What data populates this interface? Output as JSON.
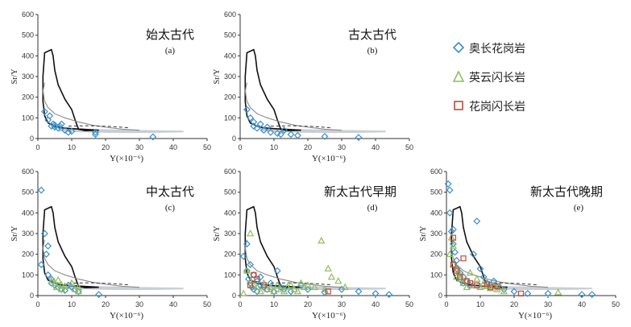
{
  "colors": {
    "tonalite": "#3d8ec9",
    "trondhjemite": "#8fbe5a",
    "granodiorite": "#c24a3a",
    "adakite_field": "#111111",
    "arc_field": "#8a8a8a",
    "normal_arc_band": "#c9ced6",
    "axis": "#333333"
  },
  "legend": {
    "items": [
      {
        "label": "奥长花岗岩",
        "marker": "diamond",
        "color_key": "tonalite"
      },
      {
        "label": "英云闪长岩",
        "marker": "triangle",
        "color_key": "trondhjemite"
      },
      {
        "label": "花岗闪长岩",
        "marker": "square",
        "color_key": "granodiorite"
      }
    ]
  },
  "chart_data": [
    {
      "type": "scatter",
      "title": "始太古代",
      "panel_label": "(a)",
      "xlabel": "Y(×10⁻⁶)",
      "ylabel": "Sr/Y",
      "xlim": [
        0,
        50
      ],
      "ylim": [
        0,
        600
      ],
      "xticks": [
        0,
        10,
        20,
        30,
        40,
        50
      ],
      "yticks": [
        0,
        100,
        200,
        300,
        400,
        500,
        600
      ],
      "series": [
        {
          "rock": "tonalite",
          "marker": "diamond",
          "points": [
            [
              2,
              130
            ],
            [
              3,
              90
            ],
            [
              3.5,
              110
            ],
            [
              4,
              60
            ],
            [
              4.5,
              70
            ],
            [
              5,
              65
            ],
            [
              5,
              55
            ],
            [
              6,
              50
            ],
            [
              6.5,
              60
            ],
            [
              7,
              70
            ],
            [
              8,
              40
            ],
            [
              9,
              30
            ],
            [
              10,
              35
            ],
            [
              17,
              20
            ],
            [
              17,
              30
            ],
            [
              34,
              8
            ]
          ]
        }
      ]
    },
    {
      "type": "scatter",
      "title": "古太古代",
      "panel_label": "(b)",
      "xlabel": "Y(×10⁻⁶)",
      "ylabel": "Sr/Y",
      "xlim": [
        0,
        50
      ],
      "ylim": [
        0,
        600
      ],
      "xticks": [
        0,
        10,
        20,
        30,
        40,
        50
      ],
      "yticks": [
        0,
        100,
        200,
        300,
        400,
        500,
        600
      ],
      "series": [
        {
          "rock": "tonalite",
          "marker": "diamond",
          "points": [
            [
              2,
              140
            ],
            [
              3,
              100
            ],
            [
              4,
              80
            ],
            [
              4,
              60
            ],
            [
              5,
              50
            ],
            [
              6,
              70
            ],
            [
              7,
              40
            ],
            [
              8,
              55
            ],
            [
              9,
              30
            ],
            [
              11,
              25
            ],
            [
              12,
              20
            ],
            [
              13,
              40
            ],
            [
              15,
              20
            ],
            [
              17,
              15
            ],
            [
              25,
              10
            ],
            [
              35,
              5
            ]
          ]
        }
      ]
    },
    {
      "type": "scatter",
      "title": "中太古代",
      "panel_label": "(c)",
      "xlabel": "Y(×10⁻⁶)",
      "ylabel": "Sr/Y",
      "xlim": [
        0,
        50
      ],
      "ylim": [
        0,
        600
      ],
      "xticks": [
        0,
        10,
        20,
        30,
        40,
        50
      ],
      "yticks": [
        0,
        100,
        200,
        300,
        400,
        500,
        600
      ],
      "series": [
        {
          "rock": "tonalite",
          "marker": "diamond",
          "points": [
            [
              1,
              510
            ],
            [
              1,
              150
            ],
            [
              2,
              300
            ],
            [
              2.5,
              200
            ],
            [
              3,
              240
            ],
            [
              3,
              100
            ],
            [
              4,
              80
            ],
            [
              4,
              60
            ],
            [
              5,
              50
            ],
            [
              6,
              40
            ],
            [
              7,
              30
            ],
            [
              8,
              25
            ],
            [
              9,
              50
            ],
            [
              10,
              40
            ],
            [
              11,
              30
            ],
            [
              12,
              20
            ],
            [
              18,
              5
            ]
          ]
        },
        {
          "rock": "trondhjemite",
          "marker": "triangle",
          "points": [
            [
              4,
              70
            ],
            [
              5,
              60
            ],
            [
              5.5,
              40
            ],
            [
              6,
              75
            ],
            [
              7,
              50
            ],
            [
              7,
              30
            ],
            [
              8,
              45
            ],
            [
              10,
              60
            ],
            [
              11,
              30
            ],
            [
              12,
              20
            ],
            [
              12,
              40
            ]
          ]
        }
      ]
    },
    {
      "type": "scatter",
      "title": "新太古代早期",
      "panel_label": "(d)",
      "xlabel": "Y(×10⁻⁶)",
      "ylabel": "Sr/Y",
      "xlim": [
        0,
        50
      ],
      "ylim": [
        0,
        600
      ],
      "xticks": [
        0,
        10,
        20,
        30,
        40,
        50
      ],
      "yticks": [
        0,
        100,
        200,
        300,
        400,
        500,
        600
      ],
      "series": [
        {
          "rock": "tonalite",
          "marker": "diamond",
          "points": [
            [
              1,
              190
            ],
            [
              2,
              250
            ],
            [
              2,
              120
            ],
            [
              2.5,
              80
            ],
            [
              3,
              150
            ],
            [
              3,
              60
            ],
            [
              3.5,
              40
            ],
            [
              4,
              100
            ],
            [
              4,
              30
            ],
            [
              5,
              70
            ],
            [
              5,
              20
            ],
            [
              6,
              50
            ],
            [
              6,
              90
            ],
            [
              7,
              40
            ],
            [
              8,
              30
            ],
            [
              9,
              60
            ],
            [
              10,
              20
            ],
            [
              11,
              120
            ],
            [
              12,
              40
            ],
            [
              13,
              30
            ],
            [
              15,
              20
            ],
            [
              18,
              50
            ],
            [
              20,
              30
            ],
            [
              25,
              15
            ],
            [
              30,
              30
            ],
            [
              35,
              20
            ],
            [
              40,
              10
            ],
            [
              44,
              5
            ]
          ]
        },
        {
          "rock": "trondhjemite",
          "marker": "triangle",
          "points": [
            [
              1,
              10
            ],
            [
              2,
              120
            ],
            [
              3,
              300
            ],
            [
              3,
              70
            ],
            [
              4,
              50
            ],
            [
              5,
              40
            ],
            [
              6,
              20
            ],
            [
              7,
              60
            ],
            [
              8,
              30
            ],
            [
              9,
              40
            ],
            [
              10,
              20
            ],
            [
              11,
              50
            ],
            [
              12,
              30
            ],
            [
              13,
              20
            ],
            [
              14,
              40
            ],
            [
              15,
              50
            ],
            [
              16,
              30
            ],
            [
              17,
              20
            ],
            [
              18,
              60
            ],
            [
              19,
              40
            ],
            [
              20,
              50
            ],
            [
              22,
              40
            ],
            [
              24,
              265
            ],
            [
              25,
              30
            ],
            [
              26,
              130
            ],
            [
              27,
              90
            ],
            [
              29,
              70
            ],
            [
              31,
              40
            ]
          ]
        },
        {
          "rock": "granodiorite",
          "marker": "square",
          "points": [
            [
              3,
              50
            ],
            [
              4,
              100
            ],
            [
              5,
              80
            ],
            [
              7,
              50
            ],
            [
              26,
              20
            ]
          ]
        }
      ]
    },
    {
      "type": "scatter",
      "title": "新太古代晚期",
      "panel_label": "(e)",
      "xlabel": "Y(×10⁻⁶)",
      "ylabel": "Sr/Y",
      "xlim": [
        0,
        50
      ],
      "ylim": [
        0,
        600
      ],
      "xticks": [
        0,
        10,
        20,
        30,
        40,
        50
      ],
      "yticks": [
        0,
        100,
        200,
        300,
        400,
        500,
        600
      ],
      "series": [
        {
          "rock": "tonalite",
          "marker": "diamond",
          "points": [
            [
              0.5,
              540
            ],
            [
              1,
              510
            ],
            [
              1,
              400
            ],
            [
              1.5,
              310
            ],
            [
              2,
              320
            ],
            [
              2,
              250
            ],
            [
              2.5,
              210
            ],
            [
              3,
              170
            ],
            [
              3,
              130
            ],
            [
              4,
              110
            ],
            [
              4,
              80
            ],
            [
              5,
              90
            ],
            [
              5,
              60
            ],
            [
              6,
              70
            ],
            [
              7,
              50
            ],
            [
              8,
              200
            ],
            [
              9,
              360
            ],
            [
              10,
              130
            ],
            [
              11,
              90
            ],
            [
              12,
              60
            ],
            [
              13,
              50
            ],
            [
              14,
              70
            ],
            [
              15,
              40
            ],
            [
              17,
              30
            ],
            [
              20,
              20
            ],
            [
              24,
              10
            ],
            [
              30,
              10
            ],
            [
              40,
              5
            ],
            [
              43,
              5
            ]
          ]
        },
        {
          "rock": "trondhjemite",
          "marker": "triangle",
          "points": [
            [
              1,
              200
            ],
            [
              1.5,
              280
            ],
            [
              2,
              240
            ],
            [
              2,
              150
            ],
            [
              3,
              120
            ],
            [
              3,
              90
            ],
            [
              4,
              80
            ],
            [
              4,
              100
            ],
            [
              5,
              60
            ],
            [
              6,
              70
            ],
            [
              6,
              40
            ],
            [
              7,
              110
            ],
            [
              8,
              50
            ],
            [
              9,
              80
            ],
            [
              10,
              40
            ],
            [
              11,
              60
            ],
            [
              12,
              45
            ],
            [
              13,
              35
            ],
            [
              14,
              50
            ],
            [
              15,
              30
            ],
            [
              16,
              40
            ],
            [
              17,
              20
            ],
            [
              33,
              15
            ]
          ]
        },
        {
          "rock": "granodiorite",
          "marker": "square",
          "points": [
            [
              2,
              280
            ],
            [
              2,
              150
            ],
            [
              3,
              120
            ],
            [
              4,
              90
            ],
            [
              5,
              180
            ],
            [
              6,
              70
            ],
            [
              7,
              60
            ],
            [
              9,
              50
            ],
            [
              12,
              55
            ],
            [
              13,
              40
            ],
            [
              15,
              45
            ],
            [
              22,
              10
            ]
          ]
        }
      ]
    }
  ]
}
